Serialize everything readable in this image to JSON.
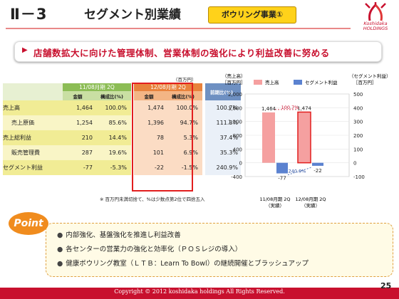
{
  "header": {
    "section_number": "Ⅱ－3",
    "title": "セグメント別業績",
    "badge": "ボウリング事業①",
    "logo_text": "Koshidaka\nHOLDINGS"
  },
  "banner": {
    "text": "店舗数拡大に向けた管理体制、営業体制の強化により利益改善に努める"
  },
  "table": {
    "unit": "（百万円）",
    "period1": "11/08月期 2Q",
    "period2": "12/08月期 2Q",
    "yoy_header": "前期比(%)",
    "col_amount": "金額",
    "col_ratio": "構成比(%)",
    "rows": [
      {
        "label": "売上高",
        "a1": "1,464",
        "r1": "100.0%",
        "a2": "1,474",
        "r2": "100.0%",
        "yoy": "100.7%"
      },
      {
        "label": "売上原価",
        "a1": "1,254",
        "r1": "85.6%",
        "a2": "1,396",
        "r2": "94.7%",
        "yoy": "111.3%"
      },
      {
        "label": "売上総利益",
        "a1": "210",
        "r1": "14.4%",
        "a2": "78",
        "r2": "5.3%",
        "yoy": "37.4%"
      },
      {
        "label": "販売管理費",
        "a1": "287",
        "r1": "19.6%",
        "a2": "101",
        "r2": "6.9%",
        "yoy": "35.3%"
      },
      {
        "label": "セグメント利益",
        "a1": "-77",
        "r1": "-5.3%",
        "a2": "-22",
        "r2": "-1.5%",
        "yoy": "240.9%"
      }
    ],
    "note": "※ 百万円未満切捨て、%は少数点第2位で四捨五入"
  },
  "chart_data": {
    "type": "bar",
    "categories": [
      "11/08月期 2Q\n（実績）",
      "12/08月期 2Q\n（実績）"
    ],
    "category_lines": [
      [
        "11/08月期 2Q",
        "（実績）"
      ],
      [
        "12/08月期 2Q",
        "（実績）"
      ]
    ],
    "series": [
      {
        "name": "売上高",
        "values": [
          1464,
          1474
        ],
        "axis": "left",
        "color": "#f5a0a0"
      },
      {
        "name": "セグメント利益",
        "values": [
          -77,
          -22
        ],
        "axis": "right",
        "color": "#5b82d0"
      }
    ],
    "left_axis_title": [
      "（売上高）",
      "［百万円］"
    ],
    "right_axis_title": [
      "（セグメント利益）",
      "［百万円］"
    ],
    "ylim_left": [
      -400,
      2000
    ],
    "ylim_right": [
      -100,
      500
    ],
    "left_ticks": [
      "2,000",
      "1,600",
      "1,200",
      "800",
      "400",
      "0",
      "-400"
    ],
    "right_ticks": [
      "500",
      "400",
      "300",
      "200",
      "100",
      "0",
      "-100"
    ],
    "data_labels": {
      "sales": [
        "1,464",
        "1,474"
      ],
      "profit": [
        "-77",
        "-22"
      ]
    },
    "annotations": {
      "sales_growth": "100.7%",
      "profit_growth": "240.9%"
    },
    "legend": {
      "placement": "top",
      "items": [
        "売上高",
        "セグメント利益"
      ]
    }
  },
  "point": {
    "badge": "Point",
    "items": [
      "内部強化、基盤強化を推進し利益改善",
      "各センターの営業力の強化と効率化（ＰＯＳレジの導入）",
      "健康ボウリング教室（ＬＴＢ：Learn To Bowl）の継続開催とブラッシュアップ"
    ]
  },
  "footer": {
    "copyright": "Copyright © 2012 koshidaka holdings All Rights Reserved.",
    "page": "25"
  }
}
